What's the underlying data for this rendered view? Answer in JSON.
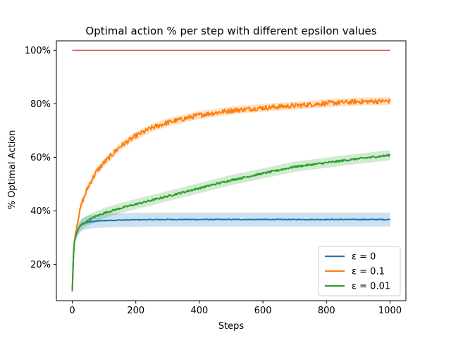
{
  "chart_data": {
    "type": "line",
    "title": "Optimal action % per step with different epsilon values",
    "xlabel": "Steps",
    "ylabel": "% Optimal Action",
    "xlim": [
      -50,
      1050
    ],
    "ylim": [
      6.5,
      103.5
    ],
    "x_ticks": [
      0,
      200,
      400,
      600,
      800,
      1000
    ],
    "x_tick_labels": [
      "0",
      "200",
      "400",
      "600",
      "800",
      "1000"
    ],
    "y_ticks": [
      20,
      40,
      60,
      80,
      100
    ],
    "y_tick_labels": [
      "20%",
      "40%",
      "60%",
      "80%",
      "100%"
    ],
    "grid": false,
    "legend_position": "lower right",
    "legend_labels": [
      "ε = 0",
      "ε = 0.1",
      "ε = 0.01"
    ],
    "reference_line": {
      "y": 100,
      "x_start": 0,
      "x_end": 1000,
      "color": "#d62728"
    },
    "series": [
      {
        "name": "ε = 0",
        "color": "#1f77b4",
        "band_color": "#1f77b4",
        "noise": 0.15,
        "x": [
          0,
          5,
          10,
          20,
          30,
          50,
          75,
          100,
          150,
          200,
          300,
          500,
          700,
          1000
        ],
        "y": [
          10,
          27,
          30.5,
          33.5,
          35,
          35.8,
          36.2,
          36.4,
          36.6,
          36.7,
          36.8,
          36.8,
          36.8,
          36.8
        ],
        "band": [
          0.5,
          1.2,
          1.8,
          2.2,
          2.4,
          2.5,
          2.6,
          2.6,
          2.6,
          2.6,
          2.6,
          2.6,
          2.6,
          2.6
        ]
      },
      {
        "name": "ε = 0.1",
        "color": "#ff7f0e",
        "band_color": "#ff7f0e",
        "noise": 0.9,
        "x": [
          0,
          5,
          10,
          20,
          30,
          50,
          75,
          100,
          150,
          200,
          250,
          300,
          400,
          500,
          600,
          700,
          800,
          900,
          1000
        ],
        "y": [
          10,
          27,
          32,
          38,
          43,
          49,
          54.5,
          58,
          64,
          68,
          71,
          73,
          75.8,
          77.5,
          78.5,
          79.3,
          80.2,
          80.8,
          81
        ],
        "band": [
          0.5,
          1.2,
          1.4,
          1.5,
          1.5,
          1.5,
          1.5,
          1.5,
          1.5,
          1.5,
          1.5,
          1.5,
          1.5,
          1.5,
          1.5,
          1.5,
          1.5,
          1.5,
          1.5
        ]
      },
      {
        "name": "ε = 0.01",
        "color": "#2ca02c",
        "band_color": "#2ca02c",
        "noise": 0.35,
        "x": [
          0,
          5,
          10,
          20,
          30,
          50,
          75,
          100,
          150,
          200,
          300,
          400,
          500,
          600,
          700,
          800,
          900,
          1000
        ],
        "y": [
          10,
          27,
          30.5,
          33.5,
          35,
          36.5,
          38,
          39.2,
          41,
          42.5,
          45.5,
          48.5,
          51.5,
          54,
          56.5,
          58,
          59.5,
          60.8
        ],
        "band": [
          0.5,
          1.2,
          1.6,
          1.8,
          1.9,
          1.9,
          1.9,
          1.9,
          1.9,
          1.9,
          1.9,
          1.9,
          1.9,
          1.9,
          1.9,
          1.9,
          1.9,
          1.9
        ]
      }
    ]
  }
}
